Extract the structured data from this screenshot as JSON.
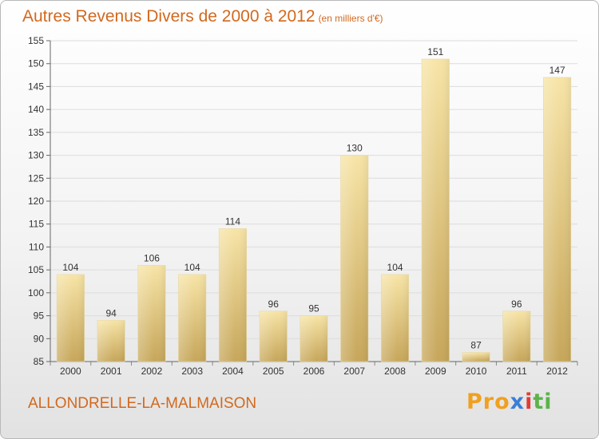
{
  "chart_data": {
    "type": "bar",
    "title": "Autres Revenus Divers de 2000 à 2012",
    "subtitle": "(en milliers d'€)",
    "categories": [
      "2000",
      "2001",
      "2002",
      "2003",
      "2004",
      "2005",
      "2006",
      "2007",
      "2008",
      "2009",
      "2010",
      "2011",
      "2012"
    ],
    "values": [
      104,
      94,
      106,
      104,
      114,
      96,
      95,
      130,
      104,
      151,
      87,
      96,
      147
    ],
    "ylim": [
      85,
      155
    ],
    "yticks": [
      85,
      90,
      95,
      100,
      105,
      110,
      115,
      120,
      125,
      130,
      135,
      140,
      145,
      150,
      155
    ],
    "grid": true,
    "legend": "none",
    "colors": {
      "bar_light": "#f4dc98",
      "bar_dark": "#c9aa5c",
      "title": "#d2691e"
    }
  },
  "place_name": "ALLONDRELLE-LA-MALMAISON",
  "logo": {
    "text": "Proxiti",
    "parts": [
      "Pro",
      "x",
      "i",
      "ti"
    ]
  }
}
